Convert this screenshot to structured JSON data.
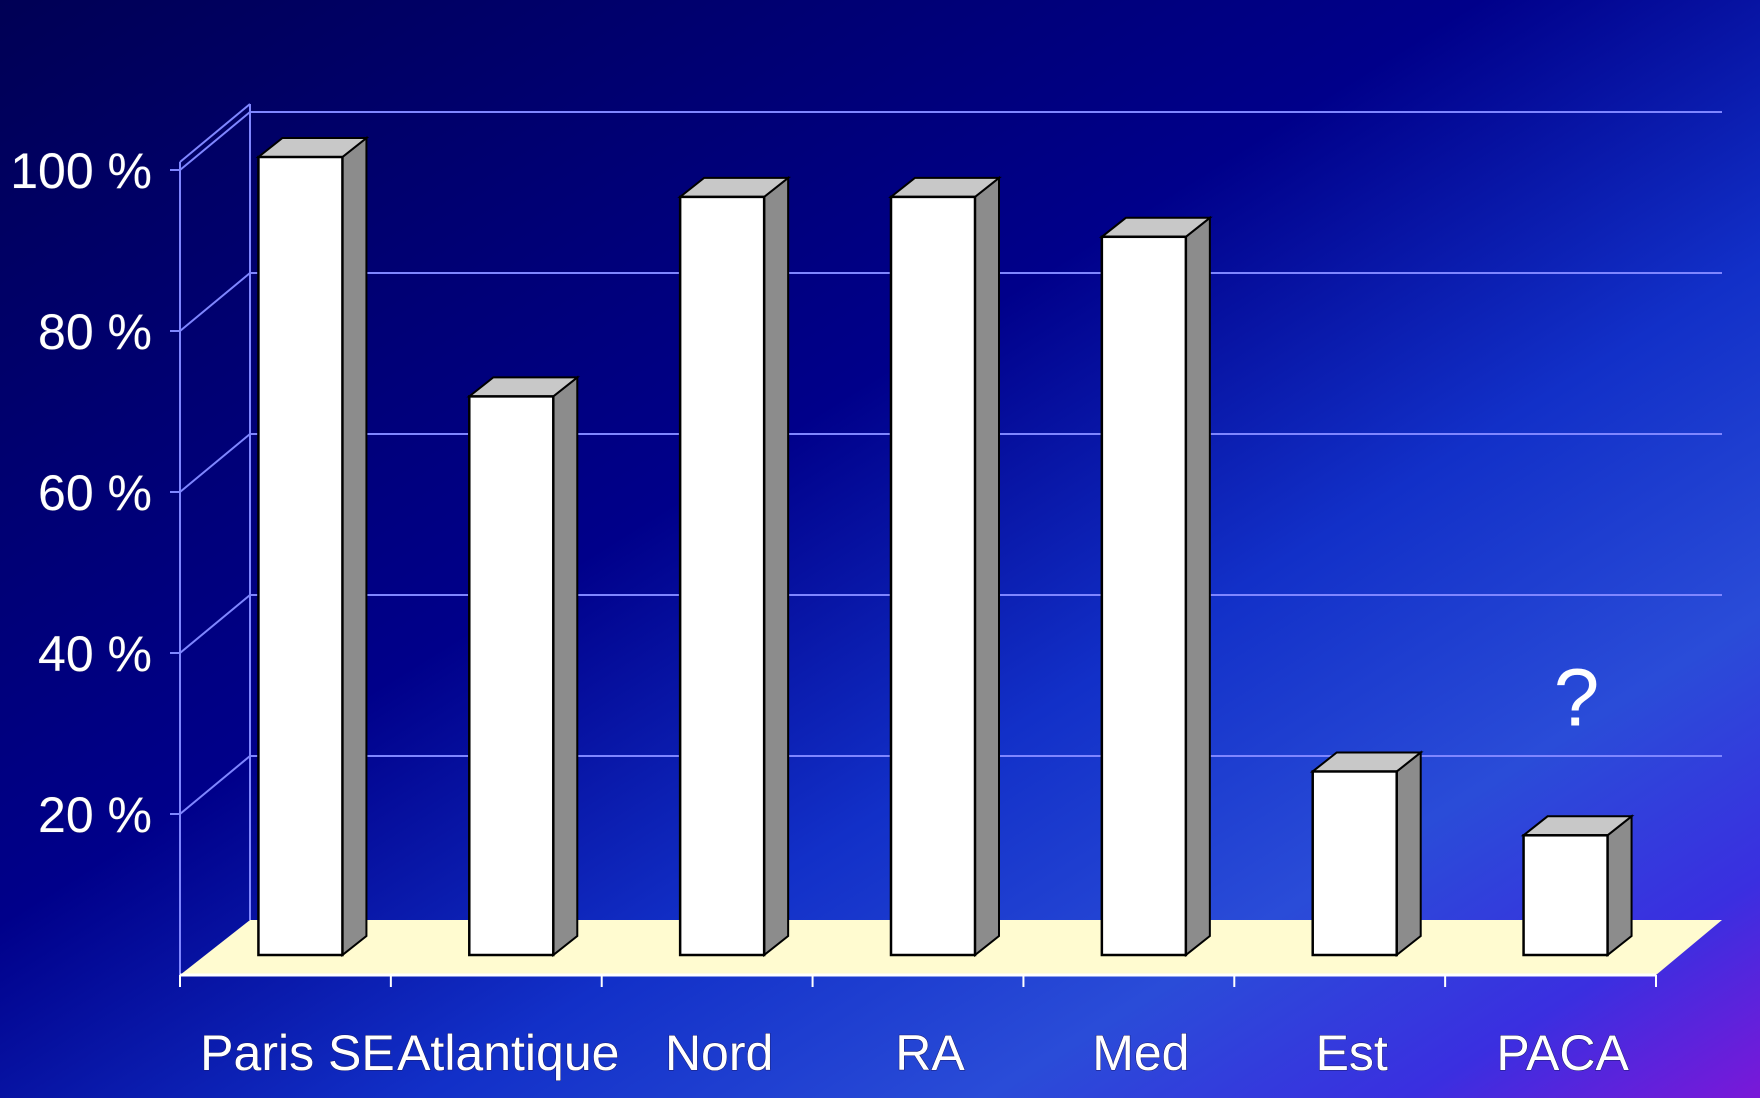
{
  "chart_data": {
    "type": "bar",
    "categories": [
      "Paris SE",
      "Atlantique",
      "Nord",
      "RA",
      "Med",
      "Est",
      "PACA"
    ],
    "values": [
      100,
      70,
      95,
      95,
      90,
      23,
      15
    ],
    "ylim": [
      0,
      100
    ],
    "yticks": [
      20,
      40,
      60,
      80,
      100
    ],
    "ytick_labels": [
      "20 %",
      "40 %",
      "60 %",
      "80 %",
      "100 %"
    ],
    "grid": true,
    "three_d": true,
    "annotations": [
      {
        "category": "PACA",
        "text": "?"
      }
    ],
    "colors": {
      "bar_front": "#ffffff",
      "bar_side": "#8c8c8c",
      "bar_top": "#c8c8c8",
      "floor": "#fffbd0",
      "grid": "#7f86ff",
      "background_dark": "#00007a",
      "background_light": "#2b4fd6",
      "background_violet": "#6a1fd8"
    }
  }
}
